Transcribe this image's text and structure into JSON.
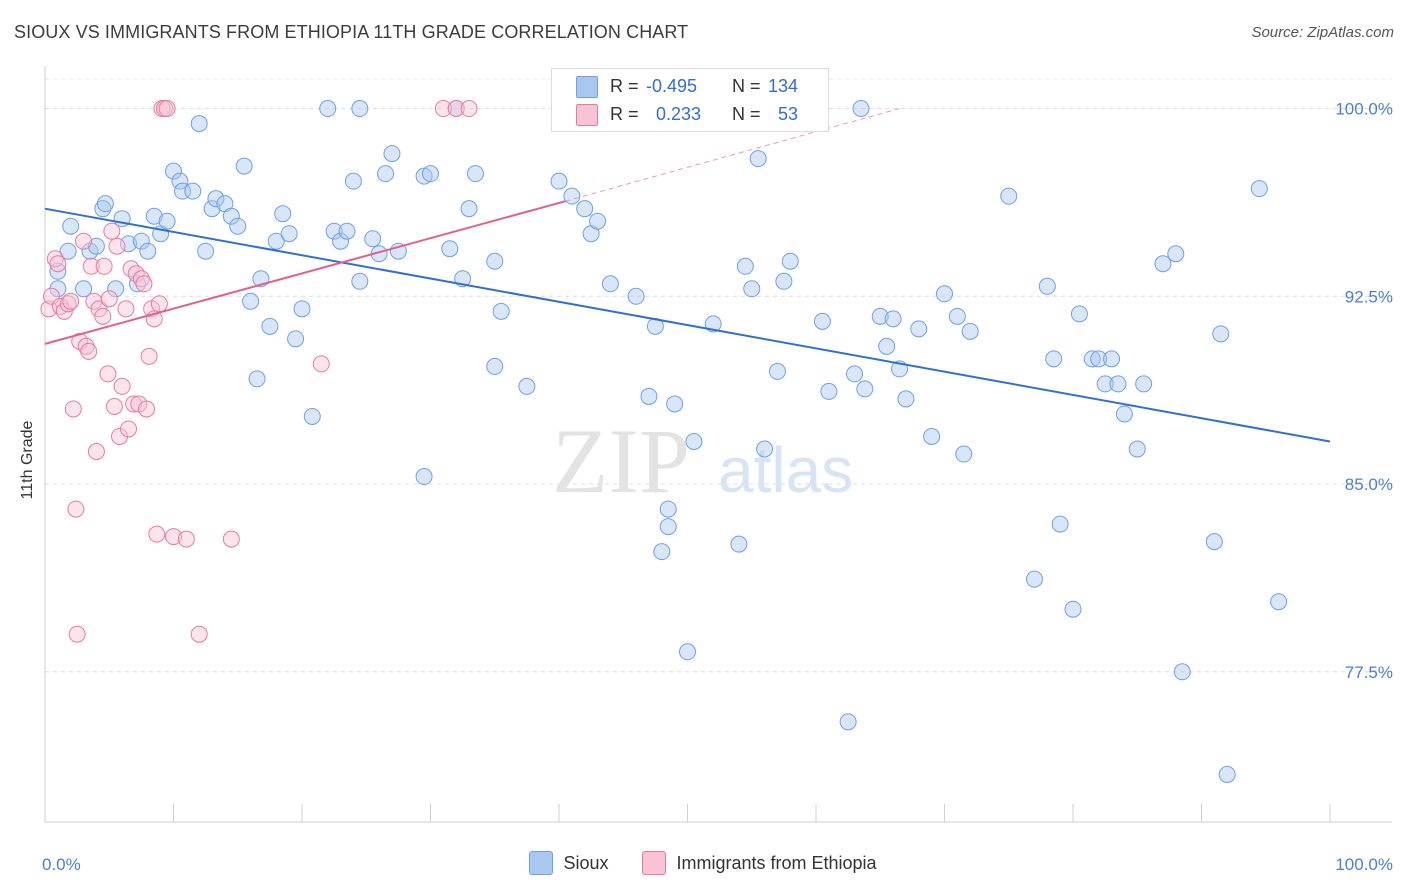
{
  "header": {
    "title": "SIOUX VS IMMIGRANTS FROM ETHIOPIA 11TH GRADE CORRELATION CHART",
    "source": "Source: ZipAtlas.com"
  },
  "watermark": {
    "zip": "ZIP",
    "atlas": "atlas"
  },
  "stats": {
    "rows": [
      {
        "r_label": "R =",
        "r_value": "-0.495",
        "n_label": "N =",
        "n_value": "134",
        "color": "#6ea0e8"
      },
      {
        "r_label": "R =",
        "r_value": "0.233",
        "n_label": "N =",
        "n_value": "53",
        "color": "#f4a6c0"
      }
    ]
  },
  "legend": {
    "items": [
      {
        "label": "Sioux",
        "color": "#a8c8f0"
      },
      {
        "label": "Immigrants from Ethiopia",
        "color": "#f8c4d4"
      }
    ]
  },
  "chart_data": {
    "type": "scatter",
    "title": "SIOUX VS IMMIGRANTS FROM ETHIOPIA 11TH GRADE CORRELATION CHART",
    "ylabel": "11th Grade",
    "xlabel": "",
    "xlim": [
      0,
      100
    ],
    "ylim": [
      71.5,
      101.5
    ],
    "x_tick_labels": [
      "0.0%",
      "100.0%"
    ],
    "y_ticks": [
      77.5,
      85.0,
      92.5,
      100.0
    ],
    "y_tick_labels": [
      "77.5%",
      "85.0%",
      "92.5%",
      "100.0%"
    ],
    "grid": "horizontal dashed",
    "legend_position": "bottom",
    "series": [
      {
        "name": "Sioux",
        "color": "#6ea0e8",
        "fill": "#a8c8f0",
        "trend": {
          "x": [
            0,
            100
          ],
          "y": [
            96.0,
            86.7
          ]
        },
        "points": [
          [
            1,
            93.5
          ],
          [
            1,
            92.8
          ],
          [
            1.8,
            94.3
          ],
          [
            2,
            95.3
          ],
          [
            3,
            92.8
          ],
          [
            3.5,
            94.3
          ],
          [
            4,
            94.5
          ],
          [
            4.5,
            96.0
          ],
          [
            4.7,
            96.2
          ],
          [
            5.5,
            92.8
          ],
          [
            6,
            95.6
          ],
          [
            6.5,
            94.6
          ],
          [
            7.2,
            93.0
          ],
          [
            7.5,
            94.7
          ],
          [
            8,
            94.3
          ],
          [
            8.5,
            95.7
          ],
          [
            9,
            95.0
          ],
          [
            9.5,
            95.5
          ],
          [
            10,
            97.5
          ],
          [
            10.5,
            97.1
          ],
          [
            10.7,
            96.7
          ],
          [
            11.5,
            96.7
          ],
          [
            12,
            99.4
          ],
          [
            12.5,
            94.3
          ],
          [
            13,
            96.0
          ],
          [
            13.3,
            96.4
          ],
          [
            14,
            96.2
          ],
          [
            14.5,
            95.7
          ],
          [
            15,
            95.3
          ],
          [
            15.5,
            97.7
          ],
          [
            16,
            92.3
          ],
          [
            16.5,
            89.2
          ],
          [
            16.8,
            93.2
          ],
          [
            17.5,
            91.3
          ],
          [
            18,
            94.7
          ],
          [
            18.5,
            95.8
          ],
          [
            19,
            95.0
          ],
          [
            19.5,
            90.8
          ],
          [
            20,
            92.0
          ],
          [
            20.8,
            87.7
          ],
          [
            22,
            100.0
          ],
          [
            22.5,
            95.1
          ],
          [
            23,
            94.7
          ],
          [
            23.5,
            95.1
          ],
          [
            24,
            97.1
          ],
          [
            24.5,
            93.1
          ],
          [
            24.5,
            100.0
          ],
          [
            25.5,
            94.8
          ],
          [
            26,
            94.2
          ],
          [
            26.5,
            97.4
          ],
          [
            27,
            98.2
          ],
          [
            27.5,
            94.3
          ],
          [
            29.5,
            97.3
          ],
          [
            30,
            97.4
          ],
          [
            29.5,
            85.3
          ],
          [
            31.5,
            94.4
          ],
          [
            32,
            100.0
          ],
          [
            32.5,
            93.2
          ],
          [
            33,
            96.0
          ],
          [
            33.5,
            97.4
          ],
          [
            35,
            89.7
          ],
          [
            35,
            93.9
          ],
          [
            35.5,
            91.9
          ],
          [
            37.5,
            88.9
          ],
          [
            40,
            97.1
          ],
          [
            41,
            96.5
          ],
          [
            42,
            96.0
          ],
          [
            42.5,
            95.0
          ],
          [
            43,
            95.5
          ],
          [
            44,
            93.0
          ],
          [
            44.8,
            100.0
          ],
          [
            46,
            92.5
          ],
          [
            47,
            88.5
          ],
          [
            47.5,
            91.3
          ],
          [
            48,
            82.3
          ],
          [
            48.5,
            83.3
          ],
          [
            49,
            88.2
          ],
          [
            50,
            78.3
          ],
          [
            50.5,
            86.7
          ],
          [
            52,
            91.4
          ],
          [
            54,
            82.6
          ],
          [
            54.5,
            93.7
          ],
          [
            55,
            92.8
          ],
          [
            55.5,
            98.0
          ],
          [
            56,
            86.4
          ],
          [
            57,
            89.5
          ],
          [
            57.5,
            93.1
          ],
          [
            58,
            93.9
          ],
          [
            59,
            100.0
          ],
          [
            60.5,
            91.5
          ],
          [
            61,
            88.7
          ],
          [
            62.5,
            75.5
          ],
          [
            63,
            89.4
          ],
          [
            63.5,
            100.0
          ],
          [
            63.8,
            88.8
          ],
          [
            65,
            91.7
          ],
          [
            65.5,
            90.5
          ],
          [
            66,
            91.6
          ],
          [
            66.5,
            89.6
          ],
          [
            67,
            88.4
          ],
          [
            68,
            91.2
          ],
          [
            69,
            86.9
          ],
          [
            70,
            92.6
          ],
          [
            71,
            91.7
          ],
          [
            71.5,
            86.2
          ],
          [
            72,
            91.1
          ],
          [
            75,
            96.5
          ],
          [
            77,
            81.2
          ],
          [
            78,
            92.9
          ],
          [
            78.5,
            90.0
          ],
          [
            79,
            83.4
          ],
          [
            80,
            80.0
          ],
          [
            80.5,
            91.8
          ],
          [
            81.5,
            90.0
          ],
          [
            82,
            90.0
          ],
          [
            82.5,
            89.0
          ],
          [
            83,
            90.0
          ],
          [
            83.5,
            89.0
          ],
          [
            84,
            87.8
          ],
          [
            85,
            86.4
          ],
          [
            85.5,
            89.0
          ],
          [
            87,
            93.8
          ],
          [
            88,
            94.2
          ],
          [
            88.5,
            77.5
          ],
          [
            91,
            82.7
          ],
          [
            91.5,
            91.0
          ],
          [
            92,
            73.4
          ],
          [
            94.5,
            96.8
          ],
          [
            96,
            80.3
          ],
          [
            48.5,
            84.0
          ]
        ]
      },
      {
        "name": "Immigrants from Ethiopia",
        "color": "#e87aa0",
        "fill": "#f8c4d4",
        "trend": {
          "x": [
            0,
            40.5
          ],
          "y": [
            90.6,
            96.3
          ]
        },
        "trend_dashed": {
          "x": [
            40.5,
            66.5
          ],
          "y": [
            96.3,
            100.0
          ]
        },
        "points": [
          [
            0.3,
            92.0
          ],
          [
            0.5,
            92.5
          ],
          [
            0.8,
            94.0
          ],
          [
            1,
            93.8
          ],
          [
            1.2,
            92.1
          ],
          [
            1.5,
            91.9
          ],
          [
            1.8,
            92.2
          ],
          [
            2,
            92.3
          ],
          [
            2.2,
            88.0
          ],
          [
            2.4,
            84.0
          ],
          [
            2.7,
            90.7
          ],
          [
            3,
            94.7
          ],
          [
            3.2,
            90.5
          ],
          [
            3.4,
            90.3
          ],
          [
            3.6,
            93.7
          ],
          [
            3.8,
            92.3
          ],
          [
            4,
            86.3
          ],
          [
            4.2,
            92.0
          ],
          [
            4.5,
            91.7
          ],
          [
            4.6,
            93.7
          ],
          [
            4.9,
            89.4
          ],
          [
            5,
            92.4
          ],
          [
            5.2,
            95.1
          ],
          [
            5.4,
            88.1
          ],
          [
            5.6,
            94.5
          ],
          [
            5.8,
            86.9
          ],
          [
            6,
            88.9
          ],
          [
            6.3,
            92.0
          ],
          [
            6.5,
            87.2
          ],
          [
            6.7,
            93.6
          ],
          [
            6.9,
            88.2
          ],
          [
            7.1,
            93.4
          ],
          [
            7.3,
            88.2
          ],
          [
            7.5,
            93.2
          ],
          [
            7.7,
            93.0
          ],
          [
            7.9,
            88.0
          ],
          [
            8.1,
            90.1
          ],
          [
            8.3,
            92.0
          ],
          [
            8.5,
            91.6
          ],
          [
            8.7,
            83.0
          ],
          [
            8.9,
            92.2
          ],
          [
            9.1,
            100.0
          ],
          [
            9.3,
            100.0
          ],
          [
            9.5,
            100.0
          ],
          [
            10.0,
            82.9
          ],
          [
            11,
            82.8
          ],
          [
            12,
            79.0
          ],
          [
            14.5,
            82.8
          ],
          [
            21.5,
            89.8
          ],
          [
            31,
            100.0
          ],
          [
            32,
            100.0
          ],
          [
            33,
            100.0
          ],
          [
            2.5,
            79.0
          ]
        ]
      }
    ]
  }
}
